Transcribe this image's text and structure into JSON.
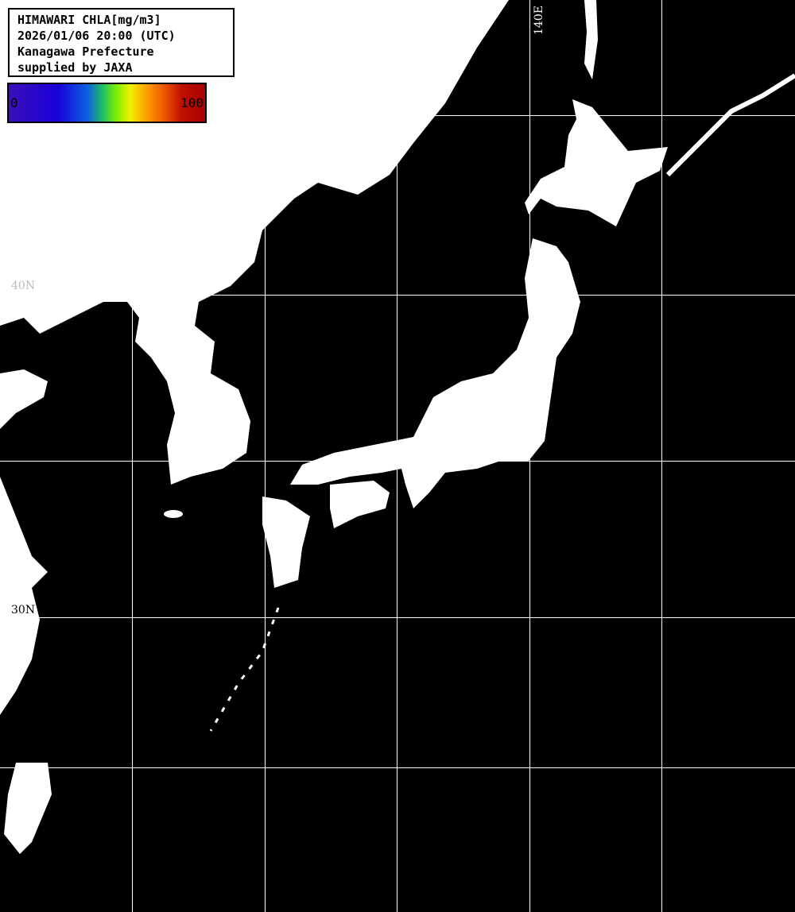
{
  "title": {
    "lines": [
      "HIMAWARI CHLA[mg/m3]",
      "2026/01/06 20:00 (UTC)",
      "Kanagawa Prefecture",
      "supplied by JAXA"
    ]
  },
  "colorbar": {
    "min_label": "0",
    "max_label": "100",
    "colors": [
      "#3a10b8",
      "#1a00d8",
      "#0a60e0",
      "#80f000",
      "#f0f000",
      "#ffa000",
      "#a80000"
    ]
  },
  "grid_labels": {
    "lon_140": "140E",
    "lat_40": "40N",
    "lat_30": "30N"
  },
  "colors": {
    "land": "#ffffff",
    "ocean": "#000000",
    "grid": "#ffffff"
  }
}
